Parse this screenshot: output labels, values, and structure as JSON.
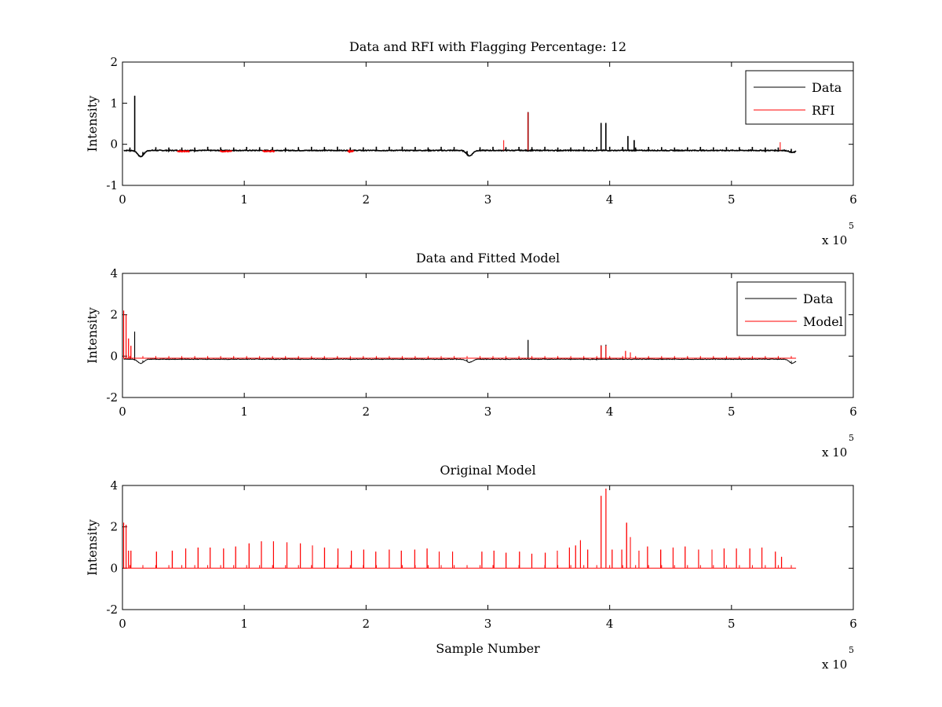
{
  "figure": {
    "background": "#ffffff"
  },
  "chart_data": [
    {
      "type": "line",
      "title": "Data and RFI with Flagging Percentage: 12",
      "xlabel": "",
      "ylabel": "Intensity",
      "xlim": [
        0,
        6
      ],
      "ylim": [
        -1,
        2
      ],
      "xticks": [
        "0",
        "1",
        "2",
        "3",
        "4",
        "5",
        "6"
      ],
      "yticks": [
        "-1",
        "0",
        "1",
        "2"
      ],
      "x_exponent": "x 10",
      "x_exponent_power": "5",
      "legend": {
        "position": "top-right",
        "entries": [
          "Data",
          "RFI"
        ]
      },
      "series": [
        {
          "name": "Data",
          "color": "#000000",
          "baseline": -0.15,
          "baseline_noise": 0.02,
          "dips": [
            [
              0.15,
              -0.3
            ],
            [
              2.85,
              -0.28
            ],
            [
              5.5,
              -0.2
            ]
          ],
          "spikes": [
            [
              0.1,
              1.18
            ],
            [
              3.33,
              0.78
            ],
            [
              3.93,
              0.52
            ],
            [
              3.97,
              0.52
            ],
            [
              4.15,
              0.2
            ],
            [
              4.2,
              0.1
            ]
          ],
          "small_spike_height": 0.08
        },
        {
          "name": "RFI",
          "color": "#ff0000",
          "segments": [
            [
              0.45,
              0.55
            ],
            [
              0.8,
              0.9
            ],
            [
              1.15,
              1.25
            ],
            [
              1.85,
              1.9
            ]
          ],
          "spikes": [
            [
              3.33,
              0.78
            ],
            [
              3.13,
              0.1
            ],
            [
              5.4,
              0.05
            ]
          ]
        }
      ]
    },
    {
      "type": "line",
      "title": "Data and Fitted Model",
      "xlabel": "",
      "ylabel": "Intensity",
      "xlim": [
        0,
        6
      ],
      "ylim": [
        -2,
        4
      ],
      "xticks": [
        "0",
        "1",
        "2",
        "3",
        "4",
        "5",
        "6"
      ],
      "yticks": [
        "-2",
        "0",
        "2",
        "4"
      ],
      "x_exponent": "x 10",
      "x_exponent_power": "5",
      "legend": {
        "position": "top-right",
        "entries": [
          "Data",
          "Model"
        ]
      },
      "series": [
        {
          "name": "Data",
          "color": "#000000",
          "baseline": -0.15,
          "baseline_noise": 0.03,
          "dips": [
            [
              0.15,
              -0.35
            ],
            [
              2.85,
              -0.3
            ],
            [
              5.5,
              -0.35
            ]
          ],
          "spikes": [
            [
              0.1,
              1.18
            ],
            [
              3.33,
              0.78
            ],
            [
              3.93,
              0.52
            ],
            [
              3.97,
              0.55
            ]
          ],
          "small_spike_height": 0.1
        },
        {
          "name": "Model",
          "color": "#ff0000",
          "baseline": -0.1,
          "spikes": [
            [
              0.01,
              2.2
            ],
            [
              0.03,
              2.0
            ],
            [
              0.05,
              0.85
            ],
            [
              0.07,
              0.5
            ],
            [
              3.93,
              0.5
            ],
            [
              3.97,
              0.5
            ],
            [
              4.13,
              0.25
            ],
            [
              4.17,
              0.18
            ]
          ],
          "small_spike_height": 0.1
        }
      ]
    },
    {
      "type": "line",
      "title": "Original Model",
      "xlabel": "Sample Number",
      "ylabel": "Intensity",
      "xlim": [
        0,
        6
      ],
      "ylim": [
        -2,
        4
      ],
      "xticks": [
        "0",
        "1",
        "2",
        "3",
        "4",
        "5",
        "6"
      ],
      "yticks": [
        "-2",
        "0",
        "2",
        "4"
      ],
      "x_exponent": "x 10",
      "x_exponent_power": "5",
      "series": [
        {
          "name": "Model",
          "color": "#ff0000",
          "baseline": 0,
          "spikes": [
            [
              0.01,
              2.2
            ],
            [
              0.03,
              2.1
            ],
            [
              0.05,
              0.85
            ],
            [
              0.07,
              0.85
            ],
            [
              0.28,
              0.8
            ],
            [
              0.41,
              0.85
            ],
            [
              0.52,
              0.95
            ],
            [
              0.62,
              1.0
            ],
            [
              0.72,
              1.0
            ],
            [
              0.83,
              0.95
            ],
            [
              0.93,
              1.05
            ],
            [
              1.04,
              1.2
            ],
            [
              1.14,
              1.3
            ],
            [
              1.24,
              1.3
            ],
            [
              1.35,
              1.25
            ],
            [
              1.46,
              1.2
            ],
            [
              1.56,
              1.1
            ],
            [
              1.66,
              1.0
            ],
            [
              1.77,
              0.95
            ],
            [
              1.88,
              0.85
            ],
            [
              1.98,
              0.9
            ],
            [
              2.08,
              0.8
            ],
            [
              2.19,
              0.9
            ],
            [
              2.29,
              0.85
            ],
            [
              2.4,
              0.9
            ],
            [
              2.5,
              0.95
            ],
            [
              2.6,
              0.8
            ],
            [
              2.71,
              0.8
            ],
            [
              2.95,
              0.8
            ],
            [
              3.05,
              0.85
            ],
            [
              3.15,
              0.75
            ],
            [
              3.26,
              0.8
            ],
            [
              3.36,
              0.7
            ],
            [
              3.47,
              0.75
            ],
            [
              3.57,
              0.85
            ],
            [
              3.67,
              1.0
            ],
            [
              3.72,
              1.1
            ],
            [
              3.76,
              1.35
            ],
            [
              3.82,
              0.9
            ],
            [
              3.93,
              3.5
            ],
            [
              3.97,
              3.85
            ],
            [
              4.02,
              0.9
            ],
            [
              4.1,
              0.9
            ],
            [
              4.14,
              2.2
            ],
            [
              4.17,
              1.5
            ],
            [
              4.24,
              0.85
            ],
            [
              4.31,
              1.05
            ],
            [
              4.42,
              0.9
            ],
            [
              4.52,
              1.0
            ],
            [
              4.62,
              1.05
            ],
            [
              4.73,
              0.9
            ],
            [
              4.84,
              0.9
            ],
            [
              4.94,
              0.95
            ],
            [
              5.04,
              0.95
            ],
            [
              5.15,
              0.95
            ],
            [
              5.25,
              1.0
            ],
            [
              5.36,
              0.8
            ],
            [
              5.41,
              0.55
            ]
          ],
          "small_spike_height": 0.15
        }
      ]
    }
  ]
}
